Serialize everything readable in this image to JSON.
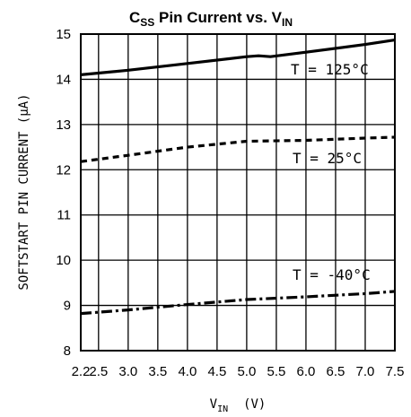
{
  "chart_data": {
    "type": "line",
    "title": {
      "main1": "C",
      "sub1": "SS",
      "main2": " Pin Current vs. V",
      "sub2": "IN"
    },
    "xlabel": {
      "main": "V",
      "sub": "IN",
      "unit": "(V)"
    },
    "ylabel": "SOFTSTART PIN CURRENT (μA)",
    "xlim": [
      2.2,
      7.5
    ],
    "ylim": [
      8,
      15
    ],
    "xticks": [
      2.2,
      2.5,
      3.0,
      3.5,
      4.0,
      4.5,
      5.0,
      5.5,
      6.0,
      6.5,
      7.0,
      7.5
    ],
    "xtick_labels": [
      "2.2",
      "2.5",
      "3.0",
      "3.5",
      "4.0",
      "4.5",
      "5.0",
      "5.5",
      "6.0",
      "6.5",
      "7.0",
      "7.5"
    ],
    "yticks": [
      8,
      9,
      10,
      11,
      12,
      13,
      14,
      15
    ],
    "ytick_labels": [
      "8",
      "9",
      "10",
      "11",
      "12",
      "13",
      "14",
      "15"
    ],
    "grid": true,
    "series": [
      {
        "name": "T = 125°C",
        "style": "solid",
        "x": [
          2.2,
          3.0,
          4.0,
          5.0,
          5.2,
          5.4,
          6.0,
          7.0,
          7.5
        ],
        "y": [
          14.1,
          14.2,
          14.35,
          14.5,
          14.52,
          14.5,
          14.6,
          14.77,
          14.87
        ]
      },
      {
        "name": "T = 25°C",
        "style": "dashed",
        "x": [
          2.2,
          3.0,
          4.0,
          5.0,
          6.0,
          7.0,
          7.5
        ],
        "y": [
          12.18,
          12.32,
          12.5,
          12.63,
          12.65,
          12.7,
          12.72
        ]
      },
      {
        "name": "T = -40°C",
        "style": "dashdot",
        "x": [
          2.2,
          3.0,
          4.0,
          5.0,
          6.0,
          7.0,
          7.5
        ],
        "y": [
          8.82,
          8.9,
          9.02,
          9.13,
          9.19,
          9.26,
          9.31
        ]
      }
    ]
  }
}
